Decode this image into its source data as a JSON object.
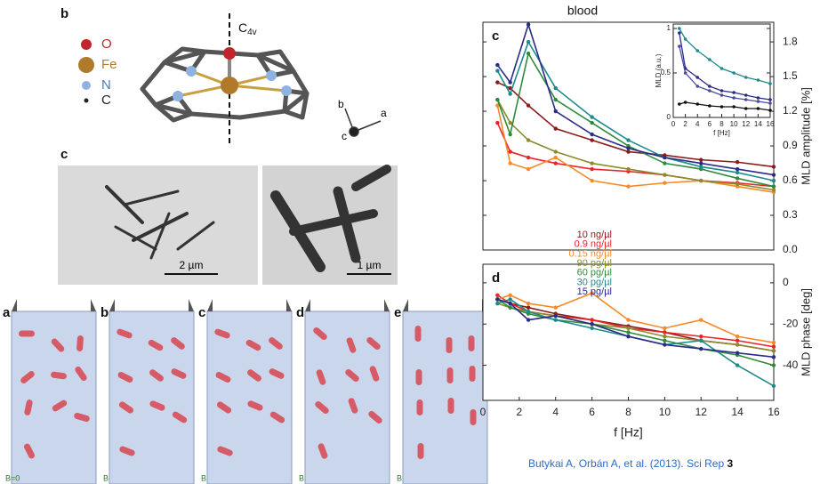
{
  "structure_panel": {
    "label": "b",
    "legend": [
      "O",
      "Fe",
      "N",
      "C"
    ],
    "axis_label": "C",
    "axis_subscript": "4v",
    "axes": [
      "b",
      "a",
      "c"
    ]
  },
  "micrograph_panel": {
    "label": "c",
    "scale_bars": [
      "2 µm",
      "1 µm"
    ]
  },
  "cartoon_panels": {
    "labels": [
      "a",
      "b",
      "c",
      "d",
      "e"
    ],
    "field_labels": [
      "B=0",
      "B",
      "B",
      "B",
      "B"
    ]
  },
  "chart_data": [
    {
      "type": "line",
      "title": "blood",
      "panel_label": "c",
      "y_label": "MLD amplitude [%]",
      "x": [
        0.8,
        1.5,
        2.5,
        4,
        6,
        8,
        10,
        12,
        14,
        16
      ],
      "xlim": [
        0,
        16
      ],
      "ylim": [
        0,
        1.97
      ],
      "yticks": [
        {
          "value": 0,
          "label": "0.0"
        },
        0.3,
        0.6,
        0.9,
        1.2,
        1.5,
        1.8
      ],
      "series": [
        {
          "name": "10 ng/µl",
          "color": "#8b1a1a",
          "values": [
            1.45,
            1.4,
            1.25,
            1.05,
            0.95,
            0.85,
            0.82,
            0.78,
            0.76,
            0.72
          ]
        },
        {
          "name": "0.9 ng/µl",
          "color": "#e8242a",
          "values": [
            1.1,
            0.85,
            0.8,
            0.75,
            0.7,
            0.68,
            0.65,
            0.6,
            0.58,
            0.55
          ]
        },
        {
          "name": "0.15 ng/µl",
          "color": "#f58a2a",
          "values": [
            1.25,
            0.75,
            0.7,
            0.8,
            0.6,
            0.55,
            0.58,
            0.6,
            0.55,
            0.5
          ]
        },
        {
          "name": "90 pg/µl",
          "color": "#8c8c2e",
          "values": [
            1.3,
            1.1,
            0.95,
            0.85,
            0.75,
            0.7,
            0.65,
            0.6,
            0.57,
            0.52
          ]
        },
        {
          "name": "60 pg/µl",
          "color": "#2e8b3c",
          "values": [
            1.3,
            1.0,
            1.7,
            1.3,
            1.1,
            0.9,
            0.75,
            0.7,
            0.62,
            0.55
          ]
        },
        {
          "name": "30 pg/µl",
          "color": "#1f8a8a",
          "values": [
            1.55,
            1.35,
            1.8,
            1.4,
            1.15,
            0.95,
            0.8,
            0.72,
            0.67,
            0.6
          ]
        },
        {
          "name": "15 pg/µl",
          "color": "#2b2b8a",
          "values": [
            1.6,
            1.45,
            1.95,
            1.2,
            1.0,
            0.88,
            0.8,
            0.75,
            0.7,
            0.65
          ]
        }
      ]
    },
    {
      "type": "line",
      "panel_label": "d",
      "y_label": "MLD phase [deg]",
      "x_label": "f [Hz]",
      "x": [
        0.8,
        1.5,
        2.5,
        4,
        6,
        8,
        10,
        12,
        14,
        16
      ],
      "xlim": [
        0,
        16
      ],
      "xticks": [
        0,
        2,
        4,
        6,
        8,
        10,
        12,
        14,
        16
      ],
      "ylim": [
        -57,
        9
      ],
      "yticks": [
        0,
        -20,
        -40
      ],
      "series": [
        {
          "color": "#8b1a1a",
          "values": [
            -8,
            -10,
            -12,
            -15,
            -18,
            -21,
            -24,
            -28,
            -30,
            -33
          ]
        },
        {
          "color": "#e8242a",
          "values": [
            -6,
            -10,
            -14,
            -16,
            -18,
            -22,
            -24,
            -26,
            -28,
            -31
          ]
        },
        {
          "color": "#f58a2a",
          "values": [
            -8,
            -6,
            -10,
            -12,
            -5,
            -18,
            -22,
            -18,
            -26,
            -29
          ]
        },
        {
          "color": "#8c8c2e",
          "values": [
            -10,
            -12,
            -14,
            -16,
            -20,
            -22,
            -26,
            -28,
            -30,
            -33
          ]
        },
        {
          "color": "#2e8b3c",
          "values": [
            -8,
            -12,
            -15,
            -18,
            -20,
            -24,
            -28,
            -32,
            -35,
            -40
          ]
        },
        {
          "color": "#1f8a8a",
          "values": [
            -10,
            -8,
            -14,
            -18,
            -22,
            -26,
            -30,
            -28,
            -40,
            -50
          ]
        },
        {
          "color": "#2b2b8a",
          "values": [
            -8,
            -10,
            -18,
            -16,
            -20,
            -26,
            -30,
            -32,
            -34,
            -36
          ]
        }
      ]
    },
    {
      "type": "line",
      "y_label": "MLD (a.u.)",
      "x_label": "f [Hz]",
      "x": [
        1,
        2,
        4,
        6,
        8,
        10,
        12,
        14,
        16
      ],
      "xlim": [
        0,
        16
      ],
      "xticks": [
        0,
        2,
        4,
        6,
        8,
        10,
        12,
        14,
        16
      ],
      "ylim": [
        0,
        1.05
      ],
      "yticks": [
        0,
        0.5,
        1
      ],
      "series": [
        {
          "color": "#1f8a8a",
          "values": [
            1,
            0.88,
            0.75,
            0.65,
            0.55,
            0.5,
            0.45,
            0.42,
            0.38
          ]
        },
        {
          "color": "#2b2b8a",
          "values": [
            0.95,
            0.55,
            0.45,
            0.35,
            0.3,
            0.28,
            0.25,
            0.22,
            0.2
          ]
        },
        {
          "color": "#4a4aa0",
          "values": [
            0.8,
            0.5,
            0.35,
            0.3,
            0.25,
            0.22,
            0.2,
            0.18,
            0.16
          ]
        },
        {
          "color": "#111111",
          "values": [
            0.15,
            0.17,
            0.15,
            0.13,
            0.12,
            0.12,
            0.1,
            0.1,
            0.08
          ]
        }
      ]
    }
  ],
  "citation": {
    "text": "Butykai A, Orbán A, et al. (2013). Sci Rep",
    "volume": "3"
  }
}
